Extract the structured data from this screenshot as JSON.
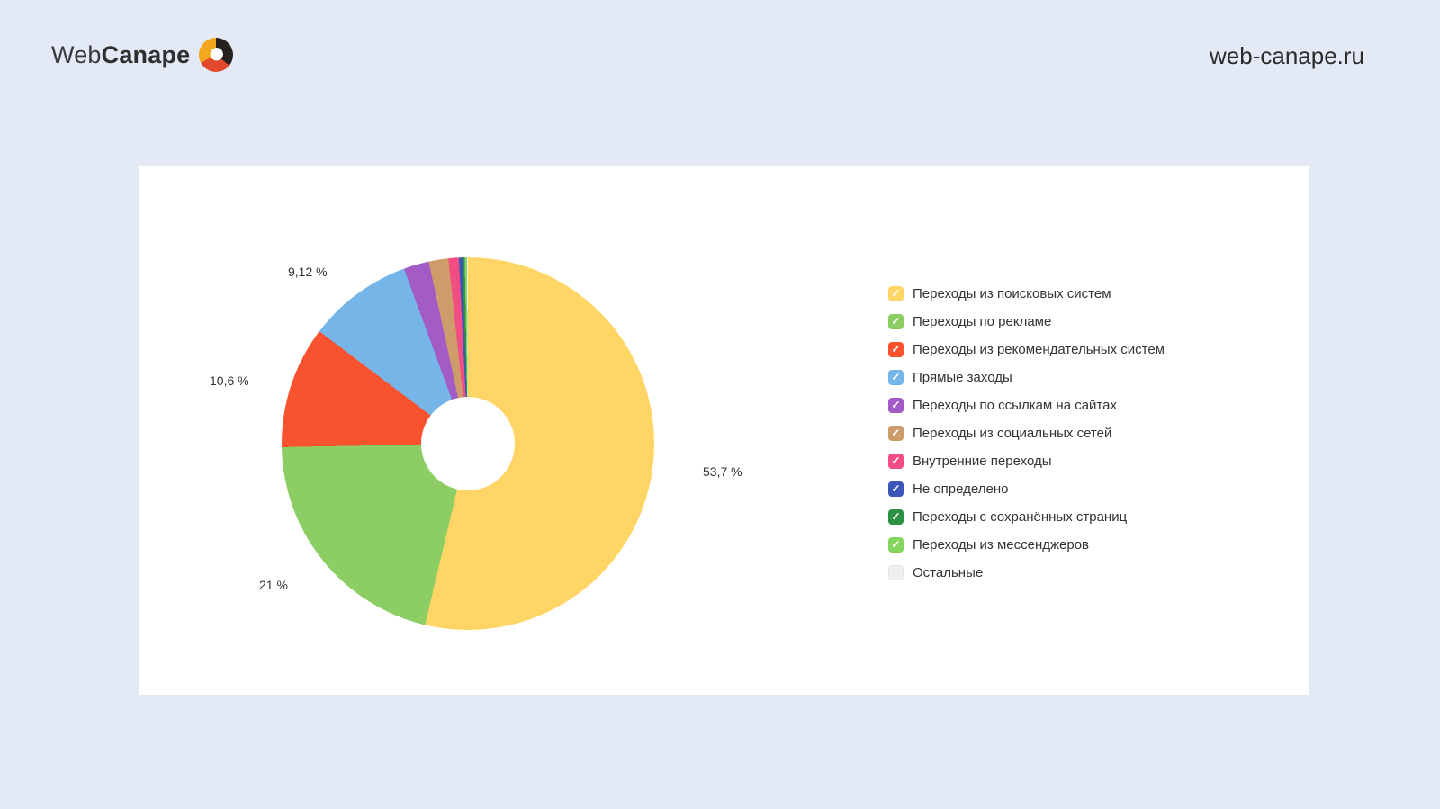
{
  "header": {
    "logo_web": "Web",
    "logo_canape": "Canape",
    "site_url": "web-canape.ru"
  },
  "chart_data": {
    "type": "pie",
    "donut": true,
    "start_angle_deg": 0,
    "direction": "clockwise",
    "legend_position": "right",
    "title": "",
    "slices": [
      {
        "label": "Переходы из поисковых систем",
        "value": 53.7,
        "color": "#FFD666",
        "data_label": "53,7 %",
        "checked": true
      },
      {
        "label": "Переходы по рекламе",
        "value": 21.0,
        "color": "#8CCE63",
        "data_label": "21 %",
        "checked": true
      },
      {
        "label": "Переходы из рекомендательных систем",
        "value": 10.6,
        "color": "#F9522F",
        "data_label": "10,6 %",
        "checked": true
      },
      {
        "label": "Прямые заходы",
        "value": 9.12,
        "color": "#76B5E8",
        "data_label": "9,12 %",
        "checked": true
      },
      {
        "label": "Переходы по ссылкам на сайтах",
        "value": 2.2,
        "color": "#A35BC6",
        "data_label": "",
        "checked": true
      },
      {
        "label": "Переходы из социальных сетей",
        "value": 1.7,
        "color": "#CE9B6B",
        "data_label": "",
        "checked": true
      },
      {
        "label": "Внутренние переходы",
        "value": 0.9,
        "color": "#F34E83",
        "data_label": "",
        "checked": true
      },
      {
        "label": "Не определено",
        "value": 0.3,
        "color": "#3C55B8",
        "data_label": "",
        "checked": true
      },
      {
        "label": "Переходы с сохранённых страниц",
        "value": 0.2,
        "color": "#2D9144",
        "data_label": "",
        "checked": true
      },
      {
        "label": "Переходы из мессенджеров",
        "value": 0.2,
        "color": "#86D55F",
        "data_label": "",
        "checked": true
      },
      {
        "label": "Остальные",
        "value": 0.08,
        "color": "#EFEFEF",
        "data_label": "",
        "checked": false
      }
    ]
  }
}
